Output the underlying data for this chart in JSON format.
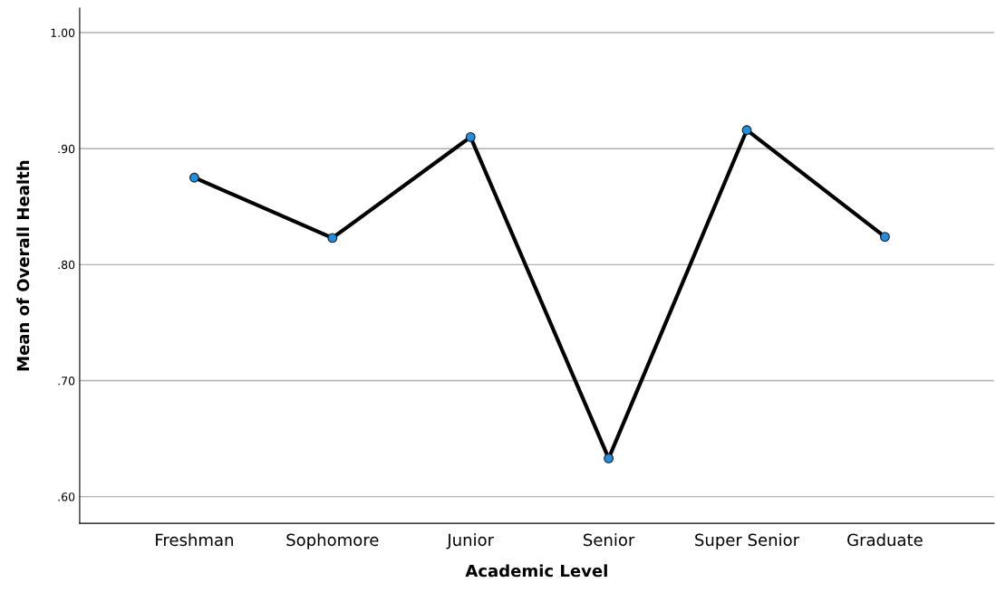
{
  "chart_data": {
    "type": "line",
    "xlabel": "Academic Level",
    "ylabel": "Mean of Overall Health",
    "categories": [
      "Freshman",
      "Sophomore",
      "Junior",
      "Senior",
      "Super Senior",
      "Graduate"
    ],
    "series": [
      {
        "color": "#000000",
        "colors": [
          "#1f8fe0",
          "#1f8fe0",
          "#1f8fe0",
          "#1f8fe0",
          "#1f8fe0",
          "#1f8fe0"
        ],
        "values": [
          0.875,
          0.823,
          0.91,
          0.633,
          0.916,
          0.824
        ]
      }
    ],
    "marker": "circle",
    "line_style": "solid",
    "ylim": [
      0.577,
      1.021
    ],
    "yticks": [
      {
        "value": 0.6,
        "label": ".60"
      },
      {
        "value": 0.7,
        "label": ".70"
      },
      {
        "value": 0.8,
        "label": ".80"
      },
      {
        "value": 0.9,
        "label": ".90"
      },
      {
        "value": 1.0,
        "label": "1.00"
      }
    ],
    "grid": "y"
  }
}
